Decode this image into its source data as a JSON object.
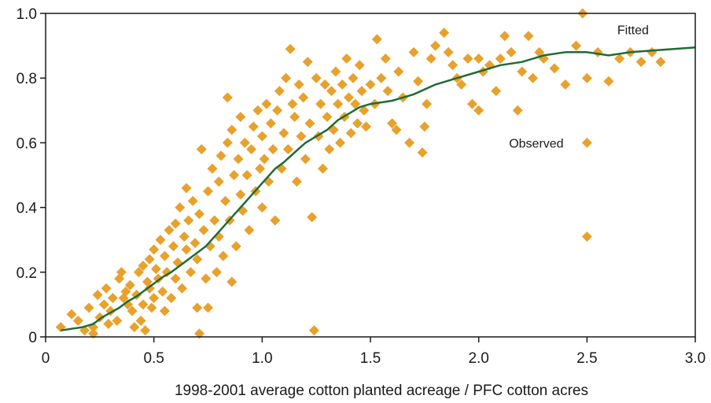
{
  "chart_data": {
    "type": "scatter",
    "title": "",
    "xlabel": "1998-2001 average cotton planted acreage / PFC cotton acres",
    "ylabel": "",
    "xlim": [
      0,
      3.0
    ],
    "ylim": [
      0,
      1.0
    ],
    "x_ticks": [
      0,
      0.5,
      1.0,
      1.5,
      2.0,
      2.5,
      3.0
    ],
    "x_tick_labels": [
      "0",
      "0.5",
      "1.0",
      "1.5",
      "2.0",
      "2.5",
      "3.0"
    ],
    "y_ticks": [
      0,
      0.2,
      0.4,
      0.6,
      0.8,
      1.0
    ],
    "y_tick_labels": [
      "0",
      "0.2",
      "0.4",
      "0.6",
      "0.8",
      "1.0"
    ],
    "grid": false,
    "colors": {
      "observed": "#E8A12C",
      "fitted": "#1E6B35",
      "axis": "#1a1a1a"
    },
    "annotations": {
      "fitted_label": "Fitted",
      "observed_label": "Observed"
    },
    "series": [
      {
        "name": "Observed",
        "marker": "diamond",
        "points": [
          [
            0.07,
            0.03
          ],
          [
            0.12,
            0.07
          ],
          [
            0.15,
            0.05
          ],
          [
            0.18,
            0.02
          ],
          [
            0.2,
            0.09
          ],
          [
            0.22,
            0.03
          ],
          [
            0.22,
            0.01
          ],
          [
            0.24,
            0.13
          ],
          [
            0.25,
            0.06
          ],
          [
            0.27,
            0.1
          ],
          [
            0.28,
            0.15
          ],
          [
            0.29,
            0.04
          ],
          [
            0.3,
            0.08
          ],
          [
            0.31,
            0.12
          ],
          [
            0.33,
            0.05
          ],
          [
            0.34,
            0.18
          ],
          [
            0.35,
            0.2
          ],
          [
            0.36,
            0.12
          ],
          [
            0.37,
            0.14
          ],
          [
            0.38,
            0.1
          ],
          [
            0.39,
            0.16
          ],
          [
            0.4,
            0.08
          ],
          [
            0.41,
            0.03
          ],
          [
            0.42,
            0.13
          ],
          [
            0.43,
            0.2
          ],
          [
            0.44,
            0.05
          ],
          [
            0.45,
            0.22
          ],
          [
            0.45,
            0.1
          ],
          [
            0.46,
            0.02
          ],
          [
            0.47,
            0.17
          ],
          [
            0.48,
            0.24
          ],
          [
            0.48,
            0.15
          ],
          [
            0.49,
            0.09
          ],
          [
            0.5,
            0.27
          ],
          [
            0.5,
            0.12
          ],
          [
            0.51,
            0.21
          ],
          [
            0.52,
            0.18
          ],
          [
            0.53,
            0.3
          ],
          [
            0.54,
            0.14
          ],
          [
            0.55,
            0.08
          ],
          [
            0.55,
            0.25
          ],
          [
            0.56,
            0.2
          ],
          [
            0.57,
            0.33
          ],
          [
            0.58,
            0.12
          ],
          [
            0.59,
            0.28
          ],
          [
            0.6,
            0.35
          ],
          [
            0.6,
            0.18
          ],
          [
            0.61,
            0.23
          ],
          [
            0.62,
            0.4
          ],
          [
            0.63,
            0.15
          ],
          [
            0.64,
            0.31
          ],
          [
            0.65,
            0.46
          ],
          [
            0.65,
            0.27
          ],
          [
            0.66,
            0.36
          ],
          [
            0.67,
            0.2
          ],
          [
            0.68,
            0.42
          ],
          [
            0.69,
            0.29
          ],
          [
            0.7,
            0.24
          ],
          [
            0.7,
            0.09
          ],
          [
            0.71,
            0.38
          ],
          [
            0.71,
            0.01
          ],
          [
            0.72,
            0.58
          ],
          [
            0.73,
            0.33
          ],
          [
            0.74,
            0.18
          ],
          [
            0.75,
            0.45
          ],
          [
            0.75,
            0.09
          ],
          [
            0.76,
            0.28
          ],
          [
            0.77,
            0.52
          ],
          [
            0.78,
            0.36
          ],
          [
            0.79,
            0.2
          ],
          [
            0.8,
            0.48
          ],
          [
            0.8,
            0.31
          ],
          [
            0.81,
            0.56
          ],
          [
            0.82,
            0.25
          ],
          [
            0.83,
            0.42
          ],
          [
            0.84,
            0.6
          ],
          [
            0.84,
            0.74
          ],
          [
            0.85,
            0.36
          ],
          [
            0.86,
            0.17
          ],
          [
            0.86,
            0.64
          ],
          [
            0.87,
            0.5
          ],
          [
            0.88,
            0.28
          ],
          [
            0.89,
            0.55
          ],
          [
            0.9,
            0.44
          ],
          [
            0.9,
            0.68
          ],
          [
            0.91,
            0.39
          ],
          [
            0.92,
            0.6
          ],
          [
            0.93,
            0.5
          ],
          [
            0.94,
            0.33
          ],
          [
            0.95,
            0.58
          ],
          [
            0.96,
            0.65
          ],
          [
            0.97,
            0.45
          ],
          [
            0.98,
            0.7
          ],
          [
            0.99,
            0.52
          ],
          [
            1.0,
            0.62
          ],
          [
            1.0,
            0.4
          ],
          [
            1.01,
            0.55
          ],
          [
            1.02,
            0.72
          ],
          [
            1.03,
            0.48
          ],
          [
            1.04,
            0.66
          ],
          [
            1.05,
            0.58
          ],
          [
            1.06,
            0.36
          ],
          [
            1.07,
            0.7
          ],
          [
            1.08,
            0.76
          ],
          [
            1.09,
            0.52
          ],
          [
            1.1,
            0.63
          ],
          [
            1.11,
            0.8
          ],
          [
            1.12,
            0.58
          ],
          [
            1.13,
            0.89
          ],
          [
            1.14,
            0.72
          ],
          [
            1.15,
            0.68
          ],
          [
            1.16,
            0.48
          ],
          [
            1.17,
            0.78
          ],
          [
            1.18,
            0.62
          ],
          [
            1.19,
            0.74
          ],
          [
            1.2,
            0.55
          ],
          [
            1.21,
            0.85
          ],
          [
            1.22,
            0.66
          ],
          [
            1.23,
            0.37
          ],
          [
            1.24,
            0.02
          ],
          [
            1.25,
            0.8
          ],
          [
            1.26,
            0.62
          ],
          [
            1.27,
            0.72
          ],
          [
            1.28,
            0.52
          ],
          [
            1.29,
            0.78
          ],
          [
            1.3,
            0.68
          ],
          [
            1.31,
            0.58
          ],
          [
            1.32,
            0.76
          ],
          [
            1.33,
            0.64
          ],
          [
            1.34,
            0.82
          ],
          [
            1.35,
            0.72
          ],
          [
            1.36,
            0.6
          ],
          [
            1.37,
            0.78
          ],
          [
            1.38,
            0.68
          ],
          [
            1.39,
            0.86
          ],
          [
            1.4,
            0.74
          ],
          [
            1.41,
            0.63
          ],
          [
            1.42,
            0.8
          ],
          [
            1.43,
            0.72
          ],
          [
            1.44,
            0.66
          ],
          [
            1.45,
            0.84
          ],
          [
            1.46,
            0.76
          ],
          [
            1.47,
            0.7
          ],
          [
            1.48,
            0.65
          ],
          [
            1.5,
            0.78
          ],
          [
            1.52,
            0.72
          ],
          [
            1.53,
            0.92
          ],
          [
            1.55,
            0.8
          ],
          [
            1.57,
            0.86
          ],
          [
            1.58,
            0.76
          ],
          [
            1.6,
            0.66
          ],
          [
            1.62,
            0.64
          ],
          [
            1.63,
            0.82
          ],
          [
            1.65,
            0.74
          ],
          [
            1.68,
            0.6
          ],
          [
            1.7,
            0.88
          ],
          [
            1.72,
            0.79
          ],
          [
            1.74,
            0.57
          ],
          [
            1.75,
            0.65
          ],
          [
            1.76,
            0.72
          ],
          [
            1.78,
            0.86
          ],
          [
            1.8,
            0.9
          ],
          [
            1.84,
            0.94
          ],
          [
            1.86,
            0.88
          ],
          [
            1.88,
            0.84
          ],
          [
            1.9,
            0.8
          ],
          [
            1.92,
            0.78
          ],
          [
            1.95,
            0.86
          ],
          [
            1.97,
            0.72
          ],
          [
            2.0,
            0.86
          ],
          [
            2.0,
            0.7
          ],
          [
            2.02,
            0.82
          ],
          [
            2.05,
            0.84
          ],
          [
            2.08,
            0.76
          ],
          [
            2.1,
            0.86
          ],
          [
            2.12,
            0.93
          ],
          [
            2.15,
            0.88
          ],
          [
            2.18,
            0.7
          ],
          [
            2.2,
            0.82
          ],
          [
            2.23,
            0.93
          ],
          [
            2.25,
            0.8
          ],
          [
            2.28,
            0.88
          ],
          [
            2.3,
            0.86
          ],
          [
            2.35,
            0.83
          ],
          [
            2.4,
            0.78
          ],
          [
            2.45,
            0.9
          ],
          [
            2.48,
            1.0
          ],
          [
            2.5,
            0.8
          ],
          [
            2.5,
            0.31
          ],
          [
            2.55,
            0.88
          ],
          [
            2.6,
            0.79
          ],
          [
            2.65,
            0.86
          ],
          [
            2.7,
            0.88
          ],
          [
            2.75,
            0.85
          ],
          [
            2.8,
            0.88
          ],
          [
            2.84,
            0.85
          ]
        ]
      },
      {
        "name": "Fitted",
        "marker": "line",
        "points": [
          [
            0.07,
            0.02
          ],
          [
            0.12,
            0.025
          ],
          [
            0.17,
            0.03
          ],
          [
            0.22,
            0.04
          ],
          [
            0.26,
            0.06
          ],
          [
            0.3,
            0.075
          ],
          [
            0.34,
            0.09
          ],
          [
            0.38,
            0.11
          ],
          [
            0.42,
            0.125
          ],
          [
            0.46,
            0.145
          ],
          [
            0.5,
            0.165
          ],
          [
            0.54,
            0.185
          ],
          [
            0.58,
            0.2
          ],
          [
            0.62,
            0.22
          ],
          [
            0.66,
            0.24
          ],
          [
            0.7,
            0.26
          ],
          [
            0.74,
            0.28
          ],
          [
            0.78,
            0.31
          ],
          [
            0.82,
            0.34
          ],
          [
            0.86,
            0.37
          ],
          [
            0.9,
            0.4
          ],
          [
            0.94,
            0.43
          ],
          [
            0.98,
            0.46
          ],
          [
            1.02,
            0.49
          ],
          [
            1.06,
            0.52
          ],
          [
            1.1,
            0.54
          ],
          [
            1.15,
            0.57
          ],
          [
            1.2,
            0.6
          ],
          [
            1.25,
            0.62
          ],
          [
            1.3,
            0.64
          ],
          [
            1.35,
            0.67
          ],
          [
            1.4,
            0.69
          ],
          [
            1.45,
            0.71
          ],
          [
            1.5,
            0.72
          ],
          [
            1.6,
            0.73
          ],
          [
            1.7,
            0.75
          ],
          [
            1.8,
            0.78
          ],
          [
            1.9,
            0.8
          ],
          [
            2.0,
            0.82
          ],
          [
            2.1,
            0.84
          ],
          [
            2.2,
            0.85
          ],
          [
            2.3,
            0.87
          ],
          [
            2.4,
            0.88
          ],
          [
            2.5,
            0.88
          ],
          [
            2.6,
            0.87
          ],
          [
            2.7,
            0.88
          ],
          [
            2.8,
            0.885
          ],
          [
            2.9,
            0.89
          ],
          [
            3.0,
            0.895
          ]
        ]
      }
    ]
  }
}
